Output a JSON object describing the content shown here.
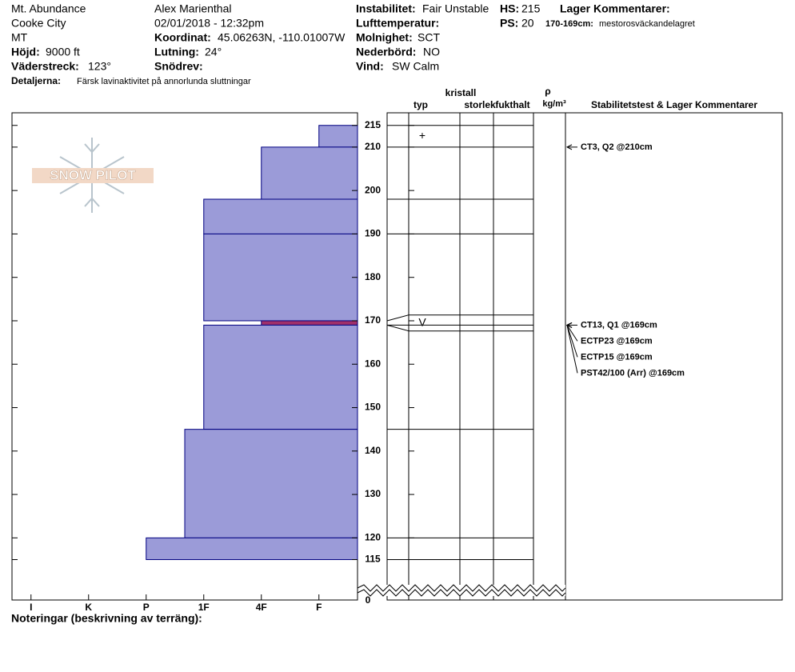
{
  "header": {
    "location": "Mt. Abundance",
    "area": "Cooke City",
    "state": "MT",
    "elevation": {
      "label": "Höjd:",
      "value": "9000 ft"
    },
    "aspect": {
      "label": "Väderstreck:",
      "value": "123°"
    },
    "details": {
      "label": "Detaljerna:",
      "value": "Färsk lavinaktivitet på annorlunda sluttningar"
    },
    "observer": "Alex Marienthal",
    "datetime": "02/01/2018 - 12:32pm",
    "coordinates": {
      "label": "Koordinat:",
      "value": "45.06263N, -110.01007W"
    },
    "slope": {
      "label": "Lutning:",
      "value": "24°"
    },
    "wind_loading": {
      "label": "Snödrev:"
    },
    "instability": {
      "label": "Instabilitet:",
      "value": "Fair Unstable"
    },
    "air_temp": {
      "label": "Lufttemperatur:"
    },
    "sky": {
      "label": "Molnighet:",
      "value": "SCT"
    },
    "precip": {
      "label": "Nederbörd:",
      "value": "NO"
    },
    "wind": {
      "label": "Vind:",
      "value": "SW Calm"
    },
    "hs": {
      "label": "HS:",
      "value": "215"
    },
    "ps": {
      "label": "PS:",
      "value": "20"
    },
    "layer_comments": {
      "label": "Lager Kommentarer:",
      "items": [
        {
          "label": "170-169cm:",
          "value": "mestorosväckandelagret"
        }
      ]
    }
  },
  "logo": "SNOW PILOT",
  "chart_data": {
    "type": "snow-profile",
    "columns": {
      "crystal": "kristall",
      "grain_type": "typ",
      "size": "storlek",
      "moisture": "fukthalt",
      "density": "ρ",
      "density_unit": "kg/m³",
      "stability": "Stabilitetstest & Lager Kommentarer"
    },
    "color": "#9b9bd8",
    "edge_color": "#000080",
    "xlim": [
      6.33,
      0.33
    ],
    "xticks": [
      {
        "value": 6,
        "label": "I"
      },
      {
        "value": 5,
        "label": "K"
      },
      {
        "value": 4,
        "label": "P"
      },
      {
        "value": 3,
        "label": "1F"
      },
      {
        "value": 2,
        "label": "4F"
      },
      {
        "value": 1,
        "label": "F"
      }
    ],
    "ylim": [
      110.3,
      217.9
    ],
    "yticks": [
      215,
      210,
      200,
      190,
      180,
      170,
      160,
      150,
      140,
      130,
      120,
      115
    ],
    "bottom_tick": 0,
    "layers": [
      {
        "top": 215,
        "bottom": 210,
        "hardness": 1,
        "grain": "+"
      },
      {
        "top": 210,
        "bottom": 198,
        "hardness": 2
      },
      {
        "top": 198,
        "bottom": 190,
        "hardness": 3
      },
      {
        "top": 190,
        "bottom": 170,
        "hardness": 3
      },
      {
        "top": 170,
        "bottom": 169,
        "hardness": 2,
        "grain": "V",
        "color": "#a0306a"
      },
      {
        "top": 169,
        "bottom": 145,
        "hardness": 3
      },
      {
        "top": 145,
        "bottom": 120,
        "hardness": 3.33
      },
      {
        "top": 120,
        "bottom": 115,
        "hardness": 4
      }
    ],
    "tests": [
      {
        "height": 210,
        "label": "CT3, Q2 @210cm"
      },
      {
        "height": 169,
        "label": "CT13, Q1 @169cm"
      },
      {
        "height": 169,
        "label": "ECTP23 @169cm"
      },
      {
        "height": 169,
        "label": "ECTP15 @169cm"
      },
      {
        "height": 169,
        "label": "PST42/100 (Arr) @169cm"
      }
    ]
  },
  "notes": "Noteringar (beskrivning av terräng):"
}
